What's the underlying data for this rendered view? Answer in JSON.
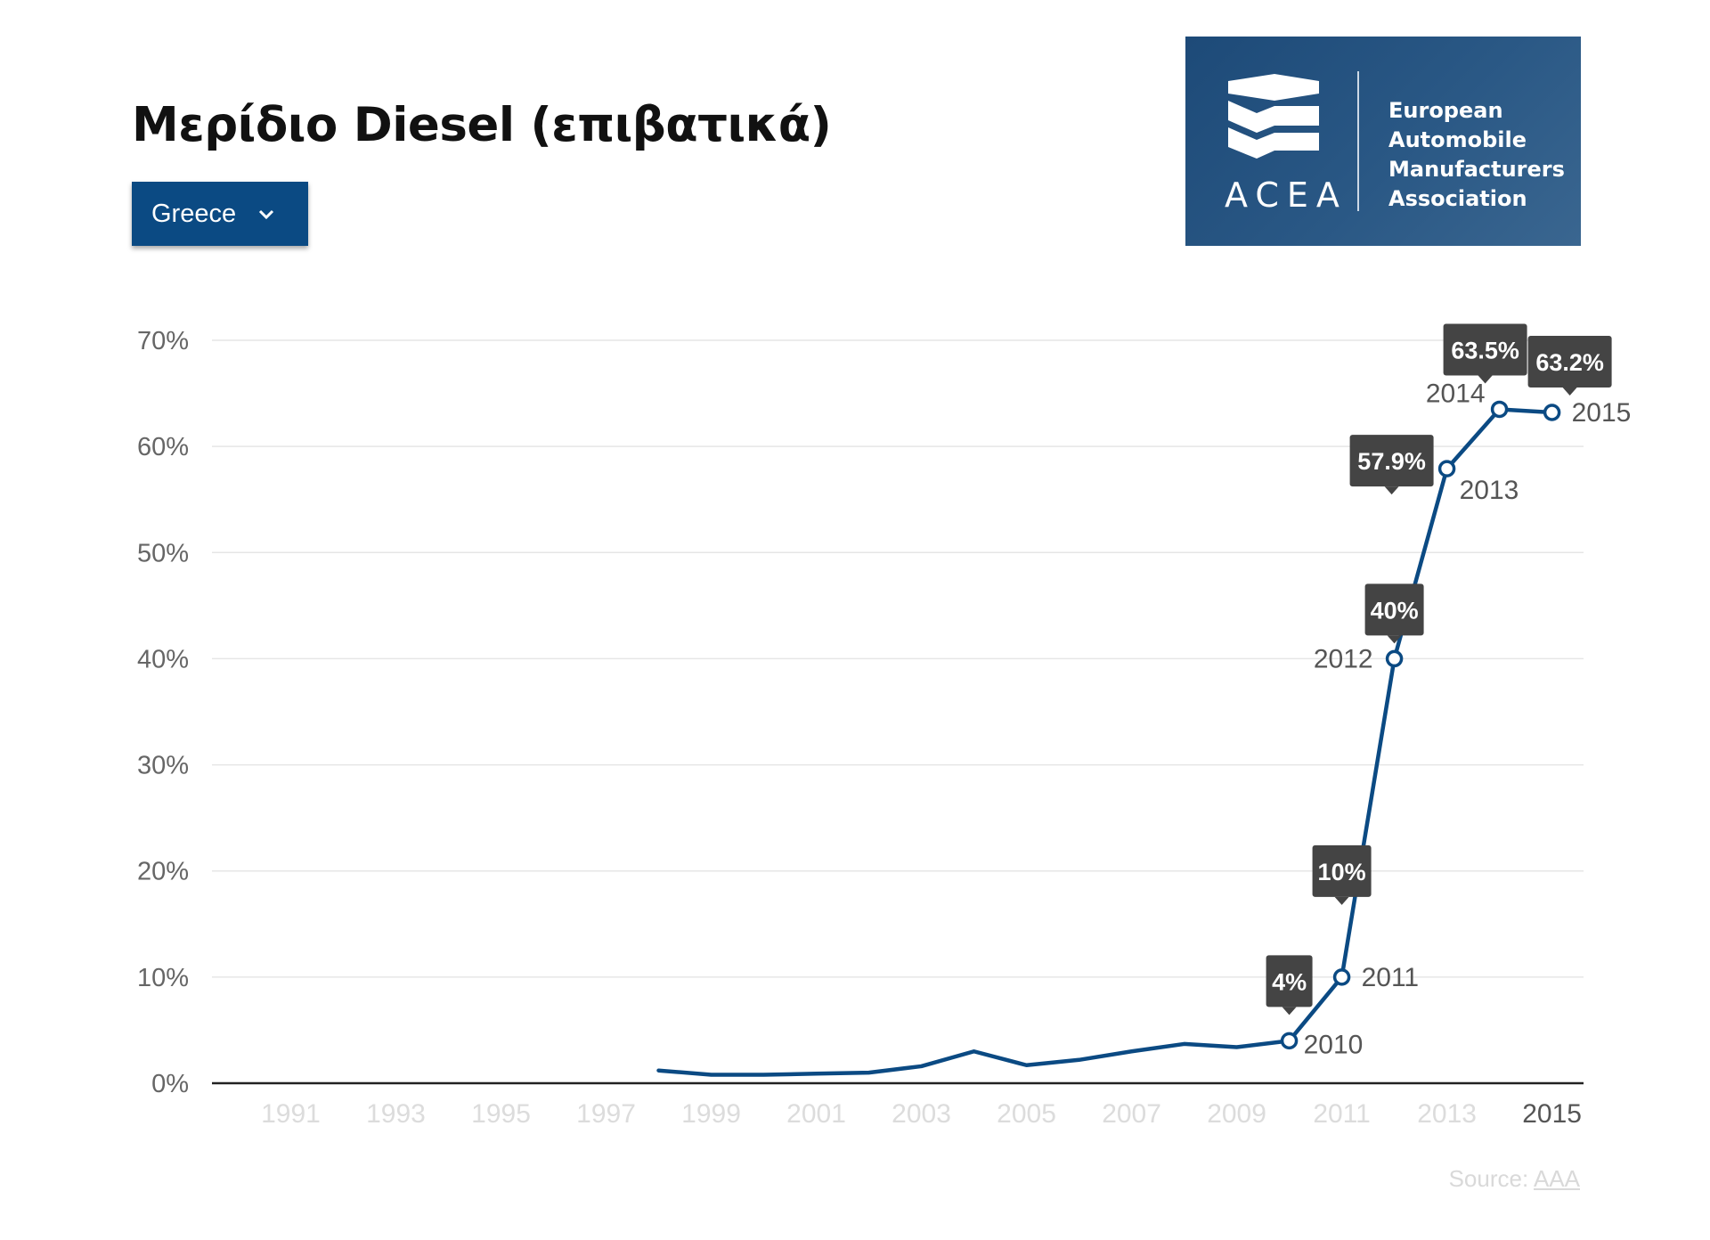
{
  "title": "Μερίδιο Diesel (επιβατικά)",
  "country_select": {
    "value": "Greece"
  },
  "logo": {
    "abbr": "ACEA",
    "name_lines": [
      "European",
      "Automobile",
      "Manufacturers",
      "Association"
    ]
  },
  "source": {
    "label": "Source:",
    "link": "AAA"
  },
  "colors": {
    "line": "#0b4a83",
    "select_bg": "#0b4a83",
    "logo_bg": "#24527f",
    "callout_bg": "#444444",
    "grid": "#e6e6e6",
    "axis_text": "#666666",
    "tick_faded": "#dcdcdc"
  },
  "chart_data": {
    "type": "line",
    "y_tick_labels": [
      "0%",
      "10%",
      "20%",
      "30%",
      "40%",
      "50%",
      "60%",
      "70%"
    ],
    "x_tick_labels": [
      "1991",
      "1993",
      "1995",
      "1997",
      "1999",
      "2001",
      "2003",
      "2005",
      "2007",
      "2009",
      "2011",
      "2013",
      "2015"
    ],
    "highlighted_x_tick": "2015",
    "ylim": [
      0,
      70
    ],
    "xlim": [
      1989.5,
      2015.6
    ],
    "grid": true,
    "series": [
      {
        "x": [
          1998,
          1999,
          2000,
          2001,
          2002,
          2003,
          2004,
          2005,
          2006,
          2007,
          2008,
          2009,
          2010,
          2011,
          2012,
          2013,
          2014,
          2015
        ],
        "values": [
          1.2,
          0.8,
          0.8,
          0.9,
          1.0,
          1.6,
          3.0,
          1.7,
          2.2,
          3.0,
          3.7,
          3.4,
          4,
          10,
          40,
          57.9,
          63.5,
          63.2
        ]
      }
    ],
    "annotations": [
      {
        "x": 2010,
        "y": 4,
        "year_label": "2010",
        "value_label": "4%"
      },
      {
        "x": 2011,
        "y": 10,
        "year_label": "2011",
        "value_label": "10%"
      },
      {
        "x": 2012,
        "y": 40,
        "year_label": "2012",
        "value_label": "40%"
      },
      {
        "x": 2013,
        "y": 57.9,
        "year_label": "2013",
        "value_label": "57.9%"
      },
      {
        "x": 2014,
        "y": 63.5,
        "year_label": "2014",
        "value_label": "63.5%"
      },
      {
        "x": 2015,
        "y": 63.2,
        "year_label": "2015",
        "value_label": "63.2%"
      }
    ]
  }
}
